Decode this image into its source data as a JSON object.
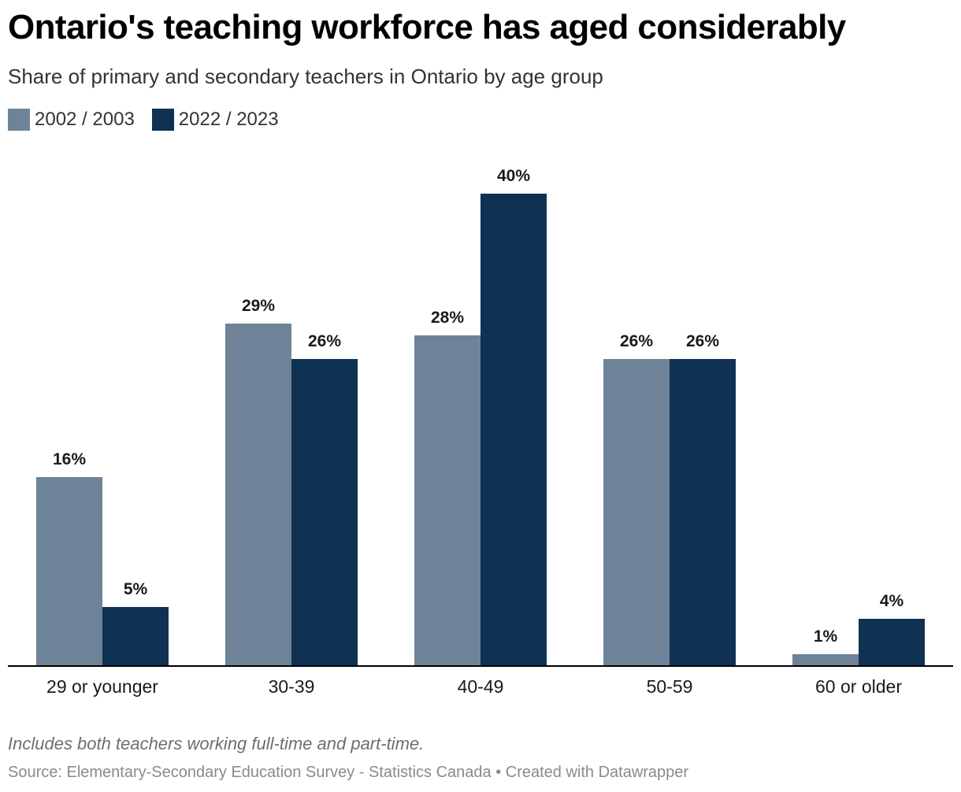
{
  "header": {
    "title": "Ontario's teaching workforce has aged considerably",
    "subtitle": "Share of primary and secondary teachers in Ontario by age group"
  },
  "footer": {
    "note": "Includes both teachers working full-time and part-time.",
    "source": "Source: Elementary-Secondary Education Survey - Statistics Canada • Created with Datawrapper"
  },
  "colors": {
    "series_2002": "#6e8397",
    "series_2022": "#0f3152",
    "axis": "#000000"
  },
  "chart_data": {
    "type": "bar",
    "title": "Ontario's teaching workforce has aged considerably",
    "subtitle": "Share of primary and secondary teachers in Ontario by age group",
    "categories": [
      "29 or younger",
      "30-39",
      "40-49",
      "50-59",
      "60 or older"
    ],
    "series": [
      {
        "name": "2002 / 2003",
        "values": [
          16,
          29,
          28,
          26,
          1
        ],
        "labels": [
          "16%",
          "29%",
          "28%",
          "26%",
          "1%"
        ]
      },
      {
        "name": "2022 / 2023",
        "values": [
          5,
          26,
          40,
          26,
          4
        ],
        "labels": [
          "5%",
          "26%",
          "40%",
          "26%",
          "4%"
        ]
      }
    ],
    "unit": "%",
    "xlabel": "",
    "ylabel": "",
    "ylim": [
      0,
      40
    ],
    "grid": false,
    "legend_position": "top-left"
  }
}
